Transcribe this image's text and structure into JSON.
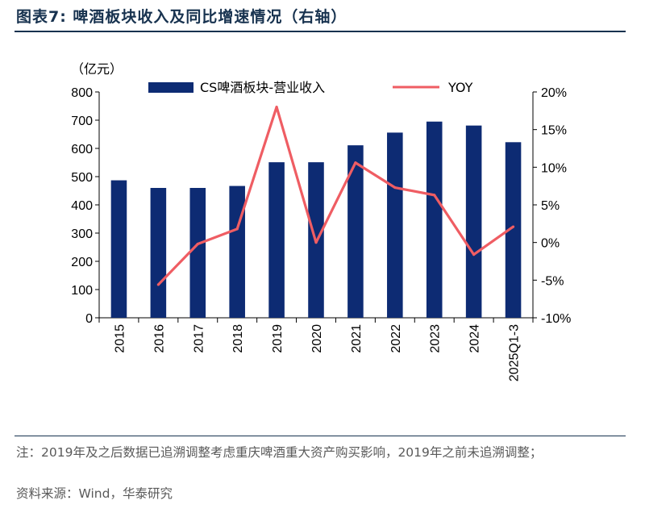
{
  "header": {
    "title": "图表7:  啤酒板块收入及同比增速情况（右轴）"
  },
  "chart_data": {
    "type": "bar",
    "title": "图表7:  啤酒板块收入及同比增速情况（右轴）",
    "unit_label": "（亿元）",
    "categories": [
      "2015",
      "2016",
      "2017",
      "2018",
      "2019",
      "2020",
      "2021",
      "2022",
      "2023",
      "2024",
      "2025Q1-3"
    ],
    "series": [
      {
        "name": "CS啤酒板块-营业收入",
        "type": "bar",
        "axis": "left",
        "color": "#0d2b73",
        "values": [
          487,
          460,
          460,
          467,
          551,
          551,
          611,
          656,
          695,
          681,
          622
        ]
      },
      {
        "name": "YOY",
        "type": "line",
        "axis": "right",
        "color": "#ef5d63",
        "values": [
          null,
          -5.6,
          -0.2,
          1.8,
          18.0,
          0.0,
          10.6,
          7.3,
          6.3,
          -1.6,
          2.1
        ]
      }
    ],
    "left_axis": {
      "ylim": [
        0,
        800
      ],
      "ticks": [
        "0",
        "100",
        "200",
        "300",
        "400",
        "500",
        "600",
        "700",
        "800"
      ]
    },
    "right_axis": {
      "ylim": [
        -10,
        20
      ],
      "ticks": [
        "-10%",
        "-5%",
        "0%",
        "5%",
        "10%",
        "15%",
        "20%"
      ]
    },
    "legend": {
      "placement": "top"
    }
  },
  "footer": {
    "note": "注：2019年及之后数据已追溯调整考虑重庆啤酒重大资产购买影响，2019年之前未追溯调整；",
    "source": "资料来源：Wind，华泰研究"
  }
}
